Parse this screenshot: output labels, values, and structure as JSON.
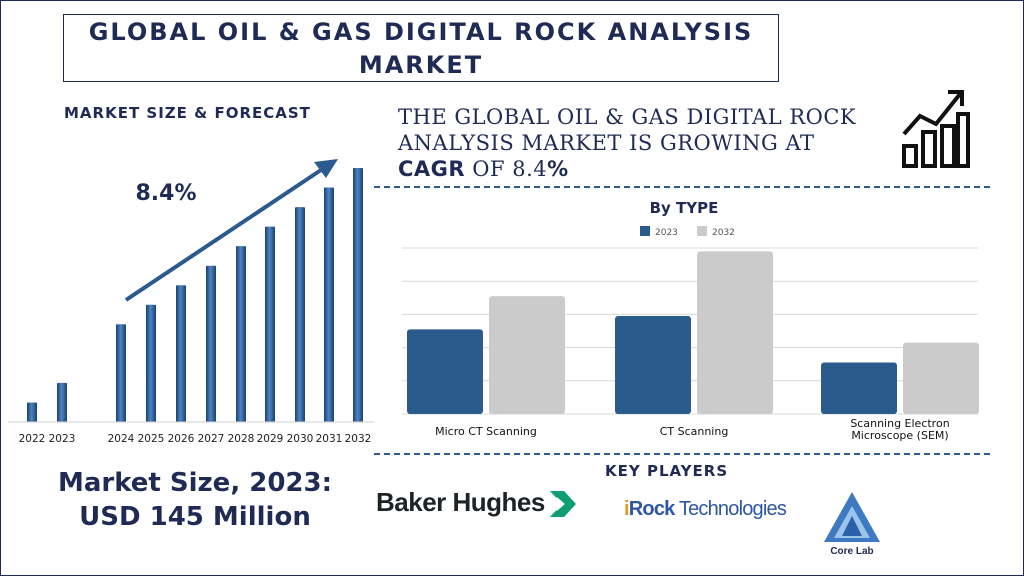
{
  "title": {
    "line1": "GLOBAL OIL & GAS DIGITAL ROCK ANALYSIS",
    "line2": "MARKET"
  },
  "forecast_heading": "MARKET SIZE & FORECAST",
  "cagr_label": "8.4%",
  "cagr_statement": {
    "text1": "THE GLOBAL OIL & GAS DIGITAL ROCK ANALYSIS MARKET IS GROWING AT ",
    "bold1": "CAGR",
    "text2": " OF 8.4",
    "bold2": "%"
  },
  "market_size": {
    "line1": "Market Size, 2023:",
    "line2": "USD 145 Million"
  },
  "key_players_heading": "KEY PLAYERS",
  "key_players": {
    "baker_hughes": "Baker Hughes",
    "irock_i": "i",
    "irock_rock": "Rock",
    "irock_rest": " Technologies",
    "core_lab": "Core Lab"
  },
  "colors": {
    "navy": "#1f2a55",
    "series_2023": "#2b5a8c",
    "series_2032": "#cbcbcb"
  },
  "chart_data": [
    {
      "type": "bar",
      "categories": [
        "2022",
        "2023",
        "2024",
        "2025",
        "2026",
        "2027",
        "2028",
        "2029",
        "2030",
        "2031",
        "2032"
      ],
      "values": [
        1.0,
        2.0,
        5.0,
        6.0,
        7.0,
        8.0,
        9.0,
        10.0,
        11.0,
        12.0,
        13.0
      ],
      "title": "MARKET SIZE & FORECAST",
      "annotation": "8.4%",
      "axis_values_shown": false
    },
    {
      "type": "bar",
      "title": "By TYPE",
      "categories": [
        "Micro CT Scanning",
        "CT Scanning",
        "Scanning Electron Microscope (SEM)"
      ],
      "category_lines": [
        [
          "Micro CT Scanning"
        ],
        [
          "CT Scanning"
        ],
        [
          "Scanning Electron",
          "Microscope (SEM)"
        ]
      ],
      "series": [
        {
          "name": "2023",
          "values": [
            2.55,
            2.95,
            1.55
          ]
        },
        {
          "name": "2032",
          "values": [
            3.55,
            4.9,
            2.15
          ]
        }
      ],
      "ylim": [
        0,
        5
      ],
      "grid": true,
      "legend": "top"
    }
  ]
}
